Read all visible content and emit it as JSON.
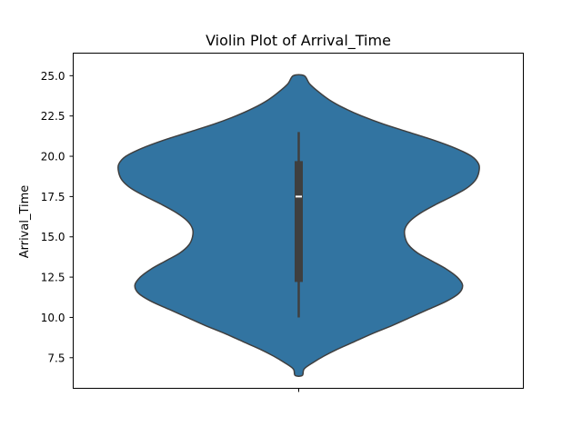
{
  "chart_data": {
    "type": "violin",
    "title": "Violin Plot of Arrival_Time",
    "xlabel": "",
    "ylabel": "Arrival_Time",
    "ylim": [
      5.6,
      26.4
    ],
    "yticks": [
      7.5,
      10.0,
      12.5,
      15.0,
      17.5,
      20.0,
      22.5,
      25.0
    ],
    "ytick_labels": [
      "7.5",
      "10.0",
      "12.5",
      "15.0",
      "17.5",
      "20.0",
      "22.5",
      "25.0"
    ],
    "grid": false,
    "violin": {
      "color": "#3274a1",
      "edge_color": "#3f3f3f",
      "max_half_width": 1.0,
      "density_profile": [
        {
          "y": 6.4,
          "w": 0.02
        },
        {
          "y": 6.8,
          "w": 0.03
        },
        {
          "y": 7.2,
          "w": 0.08
        },
        {
          "y": 7.6,
          "w": 0.14
        },
        {
          "y": 8.0,
          "w": 0.21
        },
        {
          "y": 8.5,
          "w": 0.31
        },
        {
          "y": 9.0,
          "w": 0.41
        },
        {
          "y": 9.5,
          "w": 0.52
        },
        {
          "y": 10.0,
          "w": 0.62
        },
        {
          "y": 10.5,
          "w": 0.72
        },
        {
          "y": 11.0,
          "w": 0.82
        },
        {
          "y": 11.5,
          "w": 0.89
        },
        {
          "y": 12.0,
          "w": 0.91
        },
        {
          "y": 12.5,
          "w": 0.88
        },
        {
          "y": 13.0,
          "w": 0.82
        },
        {
          "y": 13.5,
          "w": 0.74
        },
        {
          "y": 14.0,
          "w": 0.66
        },
        {
          "y": 14.5,
          "w": 0.61
        },
        {
          "y": 15.0,
          "w": 0.59
        },
        {
          "y": 15.5,
          "w": 0.59
        },
        {
          "y": 16.0,
          "w": 0.62
        },
        {
          "y": 16.5,
          "w": 0.68
        },
        {
          "y": 17.0,
          "w": 0.76
        },
        {
          "y": 17.5,
          "w": 0.85
        },
        {
          "y": 18.0,
          "w": 0.93
        },
        {
          "y": 18.5,
          "w": 0.98
        },
        {
          "y": 19.0,
          "w": 1.0
        },
        {
          "y": 19.5,
          "w": 1.0
        },
        {
          "y": 20.0,
          "w": 0.96
        },
        {
          "y": 20.5,
          "w": 0.87
        },
        {
          "y": 21.0,
          "w": 0.75
        },
        {
          "y": 21.5,
          "w": 0.61
        },
        {
          "y": 22.0,
          "w": 0.47
        },
        {
          "y": 22.5,
          "w": 0.35
        },
        {
          "y": 23.0,
          "w": 0.25
        },
        {
          "y": 23.5,
          "w": 0.17
        },
        {
          "y": 24.0,
          "w": 0.11
        },
        {
          "y": 24.5,
          "w": 0.06
        },
        {
          "y": 25.0,
          "w": 0.03
        }
      ]
    },
    "box": {
      "whisker_low": 10.0,
      "q1": 12.2,
      "median": 17.5,
      "q3": 19.7,
      "whisker_high": 21.5,
      "color": "#3f3f3f",
      "median_color": "#ffffff"
    }
  }
}
